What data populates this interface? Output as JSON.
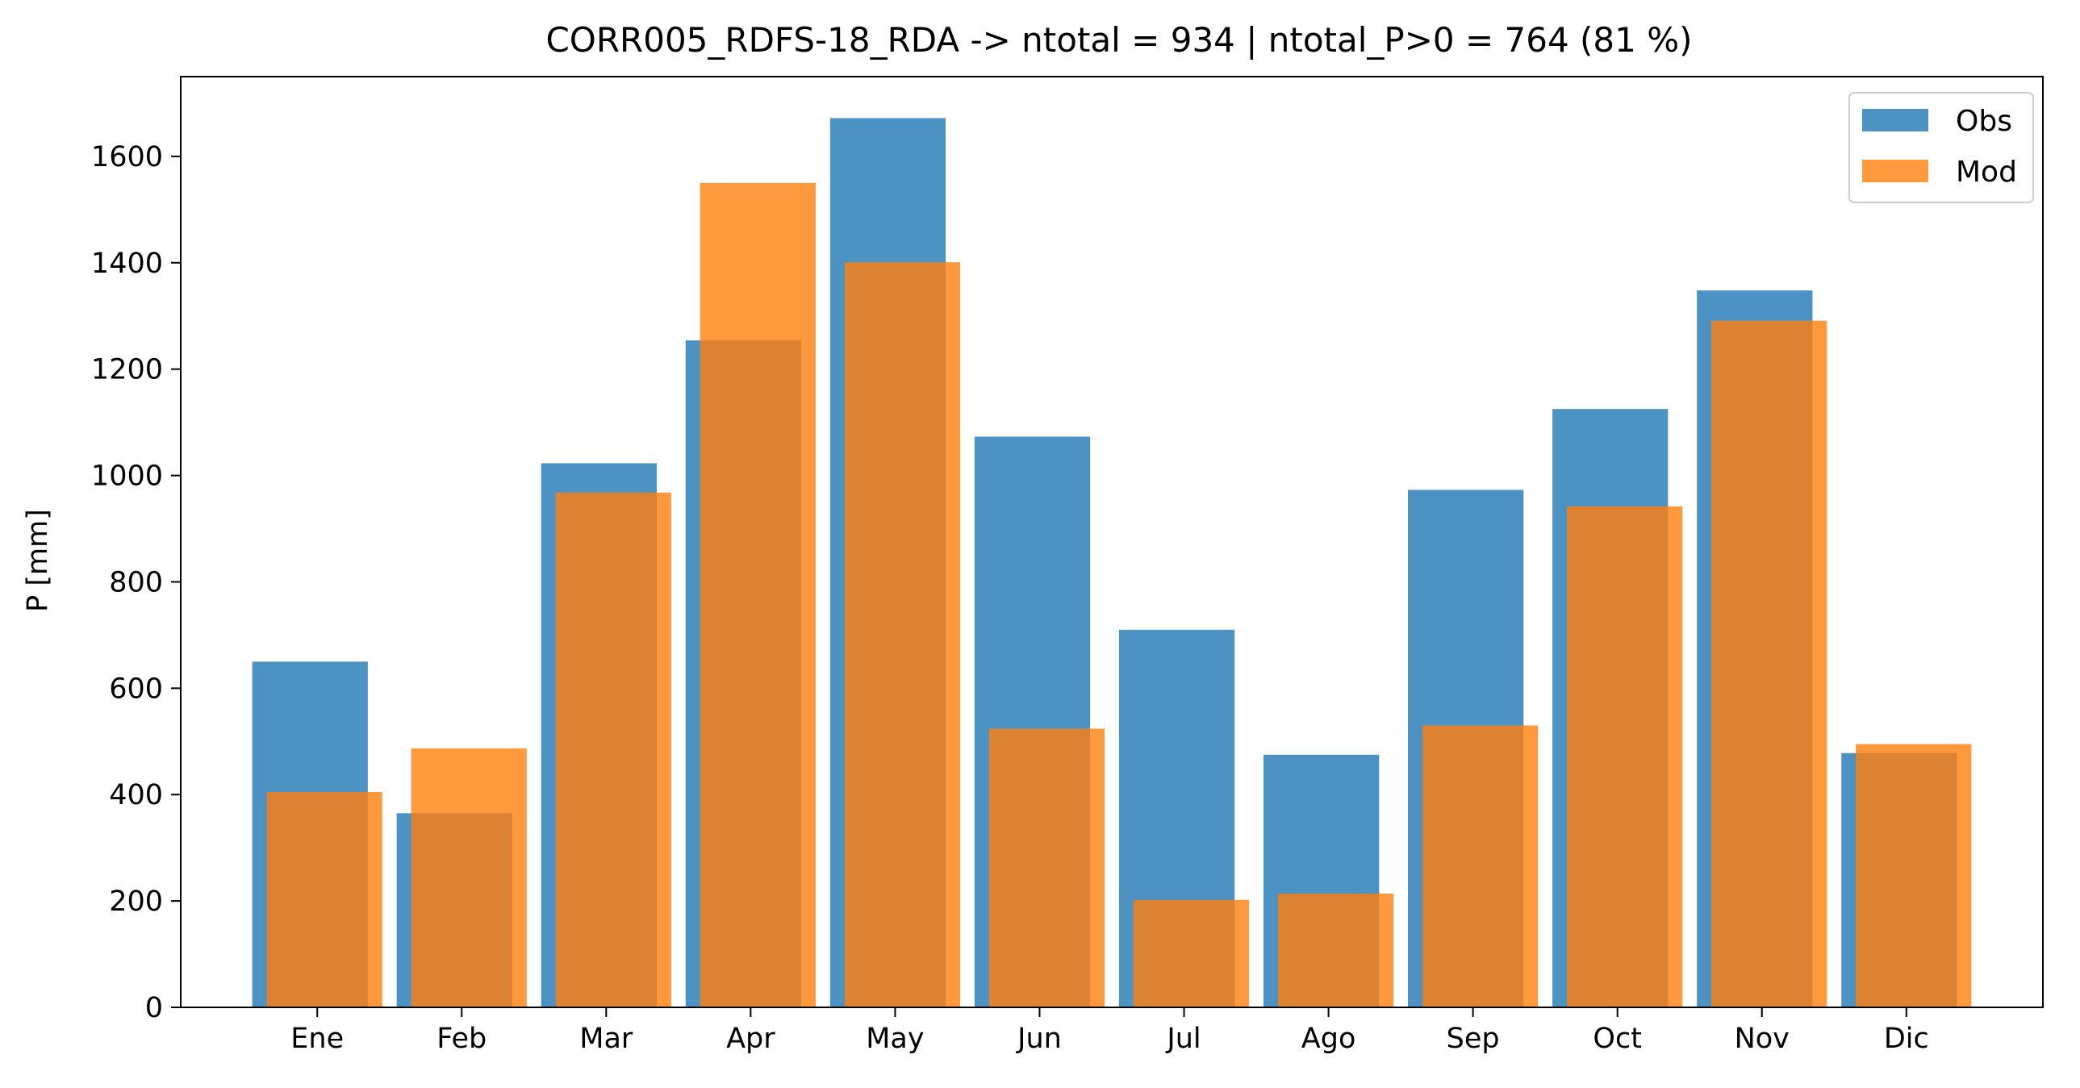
{
  "chart_data": {
    "type": "bar",
    "title": "CORR005_RDFS-18_RDA -> ntotal = 934 | ntotal_P>0 = 764 (81 %)",
    "xlabel": "",
    "ylabel": "P [mm]",
    "categories": [
      "Ene",
      "Feb",
      "Mar",
      "Apr",
      "May",
      "Jun",
      "Jul",
      "Ago",
      "Sep",
      "Oct",
      "Nov",
      "Dic"
    ],
    "series": [
      {
        "name": "Obs",
        "color": "#1f77b4",
        "values": [
          650,
          365,
          1023,
          1254,
          1672,
          1073,
          710,
          475,
          973,
          1125,
          1348,
          478
        ]
      },
      {
        "name": "Mod",
        "color": "#ff7f0e",
        "values": [
          405,
          487,
          968,
          1550,
          1401,
          524,
          202,
          214,
          530,
          942,
          1291,
          495
        ]
      }
    ],
    "ylim": [
      0,
      1750
    ],
    "yticks": [
      0,
      200,
      400,
      600,
      800,
      1000,
      1200,
      1400,
      1600
    ],
    "legend_position": "top-right",
    "grid": false
  }
}
